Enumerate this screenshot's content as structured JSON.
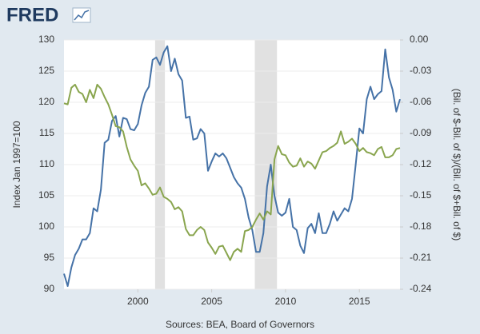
{
  "logo": "FRED",
  "chart_data": {
    "type": "line",
    "y_label": "Index Jan 1997=100",
    "y2_label": "(Bil. of $-Bil. of $)/(Bil. of $+Bil. of $)",
    "source": "Sources: BEA, Board of Governors",
    "x": [
      1995,
      1995.25,
      1995.5,
      1995.75,
      1996,
      1996.25,
      1996.5,
      1996.75,
      1997,
      1997.25,
      1997.5,
      1997.75,
      1998,
      1998.25,
      1998.5,
      1998.75,
      1999,
      1999.25,
      1999.5,
      1999.75,
      2000,
      2000.25,
      2000.5,
      2000.75,
      2001,
      2001.25,
      2001.5,
      2001.75,
      2002,
      2002.25,
      2002.5,
      2002.75,
      2003,
      2003.25,
      2003.5,
      2003.75,
      2004,
      2004.25,
      2004.5,
      2004.75,
      2005,
      2005.25,
      2005.5,
      2005.75,
      2006,
      2006.25,
      2006.5,
      2006.75,
      2007,
      2007.25,
      2007.5,
      2007.75,
      2008,
      2008.25,
      2008.5,
      2008.75,
      2009,
      2009.25,
      2009.5,
      2009.75,
      2010,
      2010.25,
      2010.5,
      2010.75,
      2011,
      2011.25,
      2011.5,
      2011.75,
      2012,
      2012.25,
      2012.5,
      2012.75,
      2013,
      2013.25,
      2013.5,
      2013.75,
      2014,
      2014.25,
      2014.5,
      2014.75,
      2015,
      2015.25,
      2015.5,
      2015.75,
      2016,
      2016.25,
      2016.5,
      2016.75,
      2017,
      2017.25,
      2017.5,
      2017.75
    ],
    "series": [
      {
        "color": "#4572a7",
        "values": [
          92.5,
          90.5,
          93.5,
          95.5,
          96.5,
          98,
          98,
          99,
          103,
          102.5,
          106,
          113.5,
          114,
          117,
          117.8,
          114.5,
          117.5,
          117.3,
          115.7,
          115.5,
          116.5,
          119.5,
          121.5,
          122.5,
          126.8,
          127.2,
          126,
          128,
          129,
          125,
          127,
          124.5,
          123.5,
          117.5,
          117.7,
          114,
          114.2,
          115.7,
          115,
          109,
          110.5,
          111.8,
          111.3,
          111.8,
          111,
          109.5,
          108,
          107,
          106.3,
          104.5,
          101.5,
          99.5,
          96,
          96,
          99,
          106.5,
          110,
          105,
          102.3,
          101.8,
          102.3,
          104.5,
          100,
          99.5,
          97,
          95.8,
          99.8,
          100.5,
          99,
          102.2,
          99,
          99,
          100.5,
          102.5,
          101,
          102,
          103,
          102.5,
          104.5,
          110,
          115.8,
          115,
          120.5,
          122.5,
          120.5,
          121.3,
          121.8,
          128.5,
          124,
          122,
          118.5,
          120.5
        ]
      },
      {
        "color": "#89a54e",
        "axis": "y2",
        "values": [
          -0.061,
          -0.062,
          -0.046,
          -0.043,
          -0.05,
          -0.052,
          -0.06,
          -0.048,
          -0.056,
          -0.043,
          -0.047,
          -0.055,
          -0.062,
          -0.072,
          -0.083,
          -0.084,
          -0.088,
          -0.103,
          -0.115,
          -0.121,
          -0.126,
          -0.14,
          -0.138,
          -0.143,
          -0.149,
          -0.148,
          -0.142,
          -0.151,
          -0.153,
          -0.156,
          -0.163,
          -0.161,
          -0.165,
          -0.182,
          -0.188,
          -0.188,
          -0.183,
          -0.18,
          -0.183,
          -0.195,
          -0.2,
          -0.206,
          -0.199,
          -0.198,
          -0.205,
          -0.212,
          -0.204,
          -0.201,
          -0.204,
          -0.184,
          -0.183,
          -0.18,
          -0.173,
          -0.167,
          -0.173,
          -0.165,
          -0.168,
          -0.115,
          -0.102,
          -0.11,
          -0.111,
          -0.118,
          -0.122,
          -0.121,
          -0.114,
          -0.122,
          -0.117,
          -0.119,
          -0.124,
          -0.116,
          -0.108,
          -0.107,
          -0.104,
          -0.102,
          -0.099,
          -0.088,
          -0.1,
          -0.098,
          -0.095,
          -0.1,
          -0.107,
          -0.104,
          -0.108,
          -0.109,
          -0.111,
          -0.105,
          -0.103,
          -0.113,
          -0.113,
          -0.111,
          -0.105,
          -0.104
        ]
      }
    ],
    "recessions": [
      [
        2001.17,
        2001.83
      ],
      [
        2007.92,
        2009.42
      ]
    ],
    "recession_color": "#e1e1e1",
    "xlim": [
      1995,
      2017.75
    ],
    "xticks": [
      2000,
      2005,
      2010,
      2015
    ],
    "ylim": [
      90,
      130
    ],
    "yticks": [
      90,
      95,
      100,
      105,
      110,
      115,
      120,
      125,
      130
    ],
    "y2lim": [
      -0.24,
      0
    ],
    "y2ticks": [
      -0.24,
      -0.21,
      -0.18,
      -0.15,
      -0.12,
      -0.09,
      -0.06,
      -0.03,
      {
        "value": 0,
        "label": "0.00"
      }
    ],
    "grid": true
  }
}
